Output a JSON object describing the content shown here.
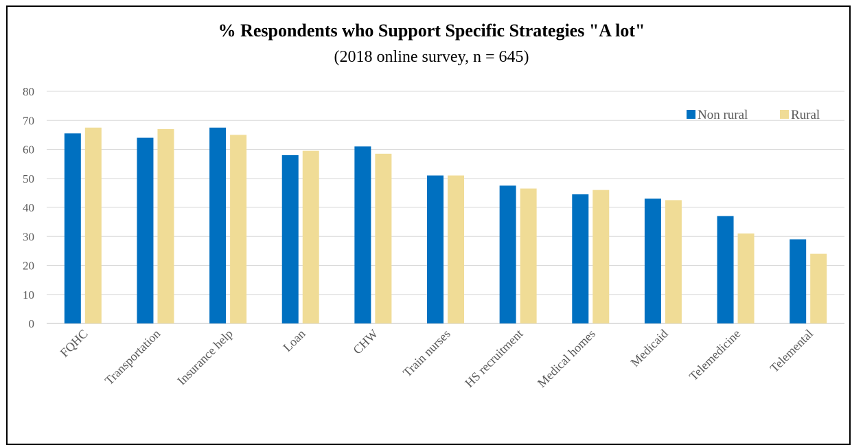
{
  "chart_data": {
    "type": "bar",
    "title": "% Respondents who Support Specific Strategies \"A lot\"",
    "subtitle": "(2018 online survey, n = 645)",
    "categories": [
      "FQHC",
      "Transportation",
      "Insurance help",
      "Loan",
      "CHW",
      "Train nurses",
      "HS recruitment",
      "Medical homes",
      "Medicaid",
      "Telemedicine",
      "Telemental"
    ],
    "series": [
      {
        "name": "Non rural",
        "color": "#0070C0",
        "values": [
          65.5,
          64,
          67.5,
          58,
          61,
          51,
          47.5,
          44.5,
          43,
          37,
          29
        ]
      },
      {
        "name": "Rural",
        "color": "#F0DC96",
        "values": [
          67.5,
          67,
          65,
          59.5,
          58.5,
          51,
          46.5,
          46,
          42.5,
          31,
          24
        ]
      }
    ],
    "yticks": [
      0,
      10,
      20,
      30,
      40,
      50,
      60,
      70,
      80
    ],
    "ylim": [
      0,
      80
    ],
    "grid": true,
    "legend_position": "top-right"
  }
}
